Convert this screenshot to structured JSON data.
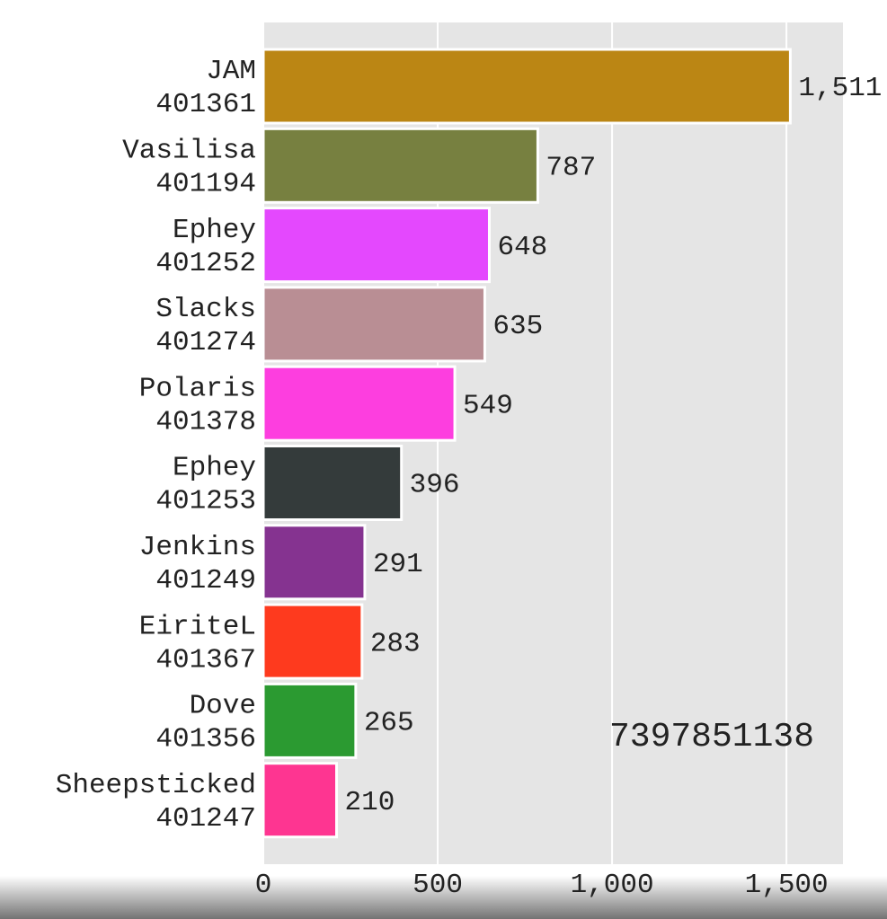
{
  "chart_data": {
    "type": "barh",
    "categories": [
      [
        "JAM",
        "401361"
      ],
      [
        "Vasilisa",
        "401194"
      ],
      [
        "Ephey",
        "401252"
      ],
      [
        "Slacks",
        "401274"
      ],
      [
        "Polaris",
        "401378"
      ],
      [
        "Ephey",
        "401253"
      ],
      [
        "Jenkins",
        "401249"
      ],
      [
        "EiriteL",
        "401367"
      ],
      [
        "Dove",
        "401356"
      ],
      [
        "Sheepsticked",
        "401247"
      ]
    ],
    "values": [
      1511,
      787,
      648,
      635,
      549,
      396,
      291,
      283,
      265,
      210
    ],
    "value_labels": [
      "1,511",
      "787",
      "648",
      "635",
      "549",
      "396",
      "291",
      "283",
      "265",
      "210"
    ],
    "colors": [
      "#bb8614",
      "#778040",
      "#e448fe",
      "#b98e94",
      "#fd3edf",
      "#343b3b",
      "#853390",
      "#fe3a1e",
      "#2b9a31",
      "#fe3591"
    ],
    "xlim": [
      0,
      1662
    ],
    "xticks": [
      0,
      500,
      {
        "value": 1000,
        "label": "1,000"
      },
      {
        "value": 1500,
        "label": "1,500"
      }
    ],
    "grid": true,
    "annotation": "7397851138"
  }
}
